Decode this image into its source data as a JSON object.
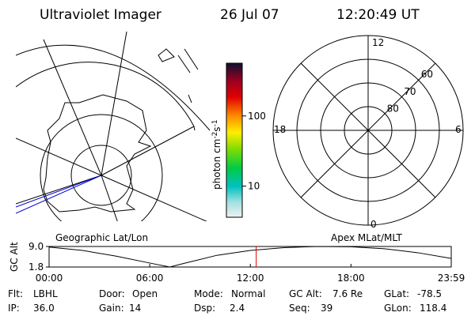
{
  "header": {
    "title": "Ultraviolet Imager",
    "date": "26 Jul 07",
    "time": "12:20:49 UT"
  },
  "polar_plot": {
    "top": "12",
    "left": "18",
    "right": "6",
    "bottom": "0",
    "rings": [
      60,
      70,
      80
    ]
  },
  "colorbar": {
    "label": [
      "photon cm",
      "-2",
      "s",
      "-1"
    ],
    "log": true,
    "lim": [
      3.6,
      565
    ],
    "ticks": [
      10,
      100
    ]
  },
  "left_caption": "Geographic Lat/Lon",
  "right_caption": "Apex MLat/MLT",
  "altitude": {
    "ylabel": "GC Alt",
    "xlim": [
      0,
      23.98
    ],
    "ylim": [
      1.8,
      9.0
    ],
    "yticks": [
      {
        "value": 9.0,
        "label": "9.0"
      },
      {
        "value": 1.8,
        "label": "1.8"
      }
    ],
    "xticks": [
      {
        "value": 0,
        "label": "00:00"
      },
      {
        "value": 6,
        "label": "06:00"
      },
      {
        "value": 12,
        "label": "12:00"
      },
      {
        "value": 18,
        "label": "18:00"
      },
      {
        "value": 23.98,
        "label": "23:59"
      }
    ],
    "x": [
      0,
      2,
      4,
      6,
      7.2,
      8,
      10,
      12,
      14,
      16,
      18,
      20,
      22,
      23.98
    ],
    "values": [
      8.8,
      7.6,
      5.6,
      3.2,
      1.8,
      3.0,
      5.9,
      7.6,
      8.6,
      9.0,
      8.9,
      8.2,
      6.8,
      4.8
    ],
    "marker": 12.35
  },
  "footer": [
    [
      {
        "label": "Flt:",
        "value": "LBHL"
      },
      {
        "label": "IP:",
        "value": "36.0"
      }
    ],
    [
      {
        "label": "Door:",
        "value": "Open"
      },
      {
        "label": "Gain:",
        "value": "14"
      }
    ],
    [
      {
        "label": "Mode:",
        "value": "Normal"
      },
      {
        "label": "Dsp:",
        "value": "2.4"
      }
    ],
    [
      {
        "label": "GC Alt:",
        "value": "7.6 Re"
      },
      {
        "label": "Seq:",
        "value": "39"
      }
    ],
    [
      {
        "label": "GLat:",
        "value": "-78.5"
      },
      {
        "label": "GLon:",
        "value": "118.4"
      }
    ]
  ]
}
